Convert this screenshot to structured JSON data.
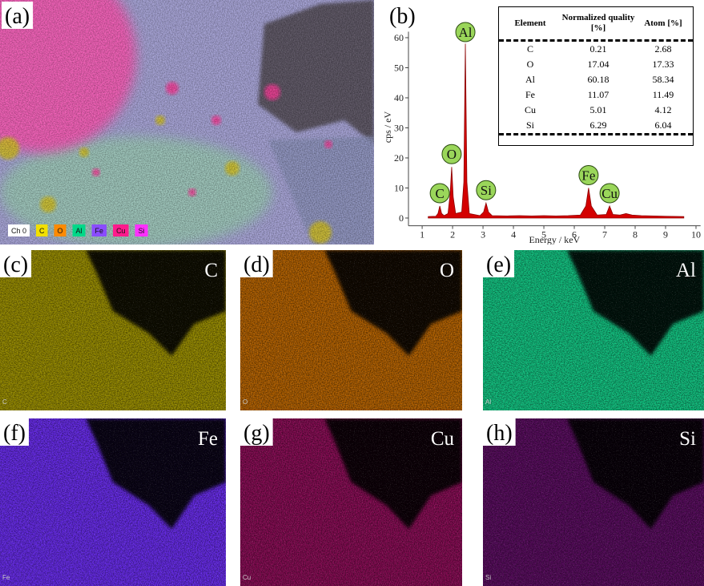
{
  "panel_a": {
    "label": "(a)",
    "legend": [
      {
        "name": "Ch 0",
        "color": "#ffffff"
      },
      {
        "name": "C",
        "color": "#f2e000"
      },
      {
        "name": "O",
        "color": "#ff8a00"
      },
      {
        "name": "Al",
        "color": "#00d888"
      },
      {
        "name": "Fe",
        "color": "#8a4cff"
      },
      {
        "name": "Cu",
        "color": "#ff1a8c"
      },
      {
        "name": "Si",
        "color": "#ff30ff"
      }
    ]
  },
  "chart_data": {
    "type": "area",
    "panel_label": "(b)",
    "x_label": "Energy / keV",
    "y_label": "cps / eV",
    "color": "#d40000",
    "xlim": [
      0.55,
      10.15
    ],
    "xticks": [
      1,
      2,
      3,
      4,
      5,
      6,
      7,
      8,
      9,
      10
    ],
    "ylim": [
      -1.5,
      62
    ],
    "yticks": [
      0,
      10,
      20,
      30,
      40,
      50,
      60
    ],
    "x": [
      1.2,
      1.45,
      1.52,
      1.58,
      1.64,
      1.72,
      1.85,
      1.92,
      1.97,
      2.02,
      2.1,
      2.3,
      2.37,
      2.42,
      2.47,
      2.55,
      2.9,
      3.02,
      3.1,
      3.18,
      3.3,
      3.8,
      4.2,
      4.6,
      5.0,
      5.4,
      5.8,
      6.2,
      6.38,
      6.47,
      6.56,
      6.75,
      7.05,
      7.16,
      7.27,
      7.5,
      7.7,
      7.9,
      8.2,
      9.0,
      9.6
    ],
    "values": [
      0.5,
      0.6,
      1.5,
      4,
      1.5,
      0.8,
      1.5,
      8,
      17,
      7,
      1.5,
      2,
      12,
      58,
      12,
      1.5,
      0.8,
      2,
      5,
      2,
      0.8,
      0.7,
      0.8,
      0.7,
      0.8,
      0.7,
      0.8,
      1,
      4,
      10,
      4,
      1,
      1.2,
      4,
      1.2,
      1,
      1.5,
      1,
      0.8,
      0.6,
      0.5
    ],
    "annotations": [
      {
        "text": "C",
        "x": 1.58
      },
      {
        "text": "O",
        "x": 1.97
      },
      {
        "text": "Al",
        "x": 2.42
      },
      {
        "text": "Si",
        "x": 3.1
      },
      {
        "text": "Fe",
        "x": 6.47
      },
      {
        "text": "Cu",
        "x": 7.16
      }
    ],
    "table": {
      "columns": [
        "Element",
        "Normalized quality [%]",
        "Atom [%]"
      ],
      "rows": [
        [
          "C",
          0.21,
          2.68
        ],
        [
          "O",
          17.04,
          17.33
        ],
        [
          "Al",
          60.18,
          58.34
        ],
        [
          "Fe",
          11.07,
          11.49
        ],
        [
          "Cu",
          5.01,
          4.12
        ],
        [
          "Si",
          6.29,
          6.04
        ]
      ]
    }
  },
  "maps": [
    {
      "label": "(c)",
      "element": "C",
      "color": "#9c9000"
    },
    {
      "label": "(d)",
      "element": "O",
      "color": "#b86400"
    },
    {
      "label": "(e)",
      "element": "Al",
      "color": "#12c884"
    },
    {
      "label": "(f)",
      "element": "Fe",
      "color": "#6a2cf0"
    },
    {
      "label": "(g)",
      "element": "Cu",
      "color": "#8a0c56"
    },
    {
      "label": "(h)",
      "element": "Si",
      "color": "#5a0c60"
    }
  ]
}
